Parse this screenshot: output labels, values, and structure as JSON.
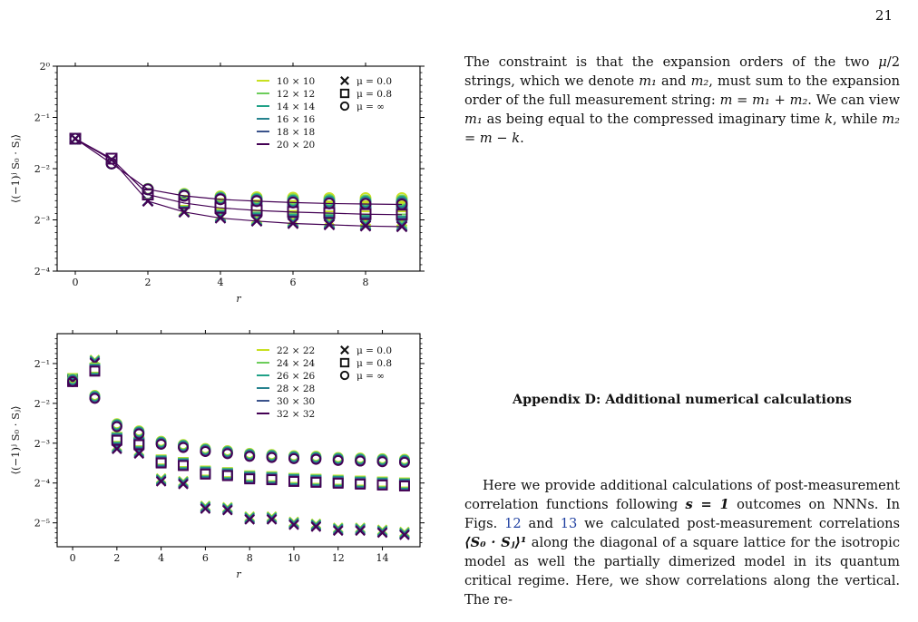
{
  "page_number": "21",
  "right_column": {
    "p1_a": "The constraint is that the expansion orders of the two ",
    "p1_b": "/2 strings, which we denote ",
    "p1_c": " and ",
    "p1_d": ", must sum to the expansion order of the full measurement string: ",
    "p1_e": ". We can view ",
    "p1_f": " as being equal to the compressed imaginary time ",
    "p1_g": ", while ",
    "p1_h": ".",
    "m1": "m₁",
    "m2": "m₂",
    "mu": "μ",
    "eq1": "m = m₁ + m₂",
    "eq2": "m₂ = m − k",
    "k": "k",
    "appendix_heading": "Appendix D: Additional numerical calculations",
    "p2_a": "Here we provide additional calculations of post-measurement correlation functions following ",
    "p2_s": "s = 1",
    "p2_b": " outcomes on NNNs. In Figs. ",
    "fig12": "12",
    "p2_and": " and ",
    "fig13": "13",
    "p2_c": " we calculated post-measurement correlations ",
    "p2_corr": "⟨S₀ · Sⱼ⟩¹",
    "p2_d": " along the diagonal of a square lattice for the isotropic model as well the partially dimerized model in its quantum critical regime. Here, we show correlations along the vertical. The re-"
  },
  "colors": {
    "viridis": [
      "#c8e020",
      "#6ccd5a",
      "#1fa187",
      "#26828e",
      "#3a528b",
      "#440154"
    ]
  },
  "chart_data": [
    {
      "type": "scatter",
      "ylabel": "⟨(−1)ʲ S₀ · Sⱼ⟩",
      "xlabel": "r",
      "xlim": [
        -0.5,
        9.5
      ],
      "ylim_log2": [
        -4,
        0
      ],
      "x_ticks": [
        "0",
        "2",
        "4",
        "6",
        "8"
      ],
      "y_ticks": [
        "2⁰",
        "2⁻¹",
        "2⁻²",
        "2⁻³",
        "2⁻⁴"
      ],
      "legend_sizes": [
        "10 × 10",
        "12 × 12",
        "14 × 14",
        "16 × 16",
        "18 × 18",
        "20 × 20"
      ],
      "legend_mu": [
        "μ = 0.0",
        "μ = 0.8",
        "μ = ∞"
      ],
      "lines_for_largest_size": true,
      "series": [
        {
          "size": "10 × 10",
          "mu": "0.0",
          "values": [
            0.375,
            0.282,
            0.162,
            0.142,
            0.133,
            0.128,
            0.125,
            0.124,
            0.124,
            0.123
          ]
        },
        {
          "size": "12 × 12",
          "mu": "0.0",
          "values": [
            0.375,
            0.282,
            0.162,
            0.141,
            0.132,
            0.126,
            0.123,
            0.121,
            0.12,
            0.12
          ]
        },
        {
          "size": "14 × 14",
          "mu": "0.0",
          "values": [
            0.375,
            0.282,
            0.162,
            0.14,
            0.131,
            0.125,
            0.122,
            0.12,
            0.118,
            0.117
          ]
        },
        {
          "size": "16 × 16",
          "mu": "0.0",
          "values": [
            0.375,
            0.282,
            0.162,
            0.14,
            0.13,
            0.124,
            0.121,
            0.119,
            0.117,
            0.116
          ]
        },
        {
          "size": "18 × 18",
          "mu": "0.0",
          "values": [
            0.375,
            0.282,
            0.162,
            0.139,
            0.129,
            0.123,
            0.12,
            0.118,
            0.116,
            0.115
          ]
        },
        {
          "size": "20 × 20",
          "mu": "0.0",
          "values": [
            0.375,
            0.282,
            0.161,
            0.139,
            0.128,
            0.123,
            0.119,
            0.117,
            0.115,
            0.114
          ]
        },
        {
          "size": "10 × 10",
          "mu": "0.8",
          "values": [
            0.375,
            0.286,
            0.178,
            0.162,
            0.155,
            0.152,
            0.151,
            0.15,
            0.15,
            0.15
          ]
        },
        {
          "size": "12 × 12",
          "mu": "0.8",
          "values": [
            0.375,
            0.286,
            0.177,
            0.16,
            0.152,
            0.148,
            0.146,
            0.145,
            0.144,
            0.144
          ]
        },
        {
          "size": "14 × 14",
          "mu": "0.8",
          "values": [
            0.375,
            0.286,
            0.177,
            0.159,
            0.15,
            0.146,
            0.143,
            0.142,
            0.141,
            0.14
          ]
        },
        {
          "size": "16 × 16",
          "mu": "0.8",
          "values": [
            0.375,
            0.286,
            0.177,
            0.158,
            0.149,
            0.144,
            0.141,
            0.139,
            0.138,
            0.137
          ]
        },
        {
          "size": "18 × 18",
          "mu": "0.8",
          "values": [
            0.375,
            0.286,
            0.177,
            0.157,
            0.148,
            0.143,
            0.14,
            0.138,
            0.137,
            0.136
          ]
        },
        {
          "size": "20 × 20",
          "mu": "0.8",
          "values": [
            0.375,
            0.286,
            0.176,
            0.157,
            0.147,
            0.142,
            0.139,
            0.137,
            0.135,
            0.134
          ]
        },
        {
          "size": "10 × 10",
          "mu": "∞",
          "values": [
            0.375,
            0.268,
            0.19,
            0.178,
            0.172,
            0.17,
            0.169,
            0.168,
            0.168,
            0.168
          ]
        },
        {
          "size": "12 × 12",
          "mu": "∞",
          "values": [
            0.375,
            0.268,
            0.19,
            0.177,
            0.17,
            0.167,
            0.165,
            0.164,
            0.163,
            0.163
          ]
        },
        {
          "size": "14 × 14",
          "mu": "∞",
          "values": [
            0.375,
            0.268,
            0.189,
            0.175,
            0.168,
            0.165,
            0.162,
            0.161,
            0.16,
            0.16
          ]
        },
        {
          "size": "16 × 16",
          "mu": "∞",
          "values": [
            0.375,
            0.268,
            0.189,
            0.174,
            0.167,
            0.163,
            0.16,
            0.159,
            0.158,
            0.157
          ]
        },
        {
          "size": "18 × 18",
          "mu": "∞",
          "values": [
            0.375,
            0.268,
            0.189,
            0.174,
            0.166,
            0.162,
            0.159,
            0.157,
            0.156,
            0.156
          ]
        },
        {
          "size": "20 × 20",
          "mu": "∞",
          "values": [
            0.375,
            0.268,
            0.189,
            0.173,
            0.165,
            0.161,
            0.158,
            0.156,
            0.155,
            0.154
          ]
        }
      ]
    },
    {
      "type": "scatter",
      "ylabel": "⟨(−1)ʲ S₀ · Sⱼ⟩",
      "xlabel": "r",
      "xlim": [
        -0.7,
        15.7
      ],
      "ylim_log2": [
        -5.6,
        -0.25
      ],
      "x_ticks": [
        "0",
        "2",
        "4",
        "6",
        "8",
        "10",
        "12",
        "14"
      ],
      "y_ticks": [
        "2⁻¹",
        "2⁻²",
        "2⁻³",
        "2⁻⁴",
        "2⁻⁵"
      ],
      "legend_sizes": [
        "22 × 22",
        "24 × 24",
        "26 × 26",
        "28 × 28",
        "30 × 30",
        "32 × 32"
      ],
      "legend_mu": [
        "μ = 0.0",
        "μ = 0.8",
        "μ = ∞"
      ],
      "series": [
        {
          "mu": "0.0",
          "x": [
            0,
            1,
            2,
            3,
            4,
            5,
            6,
            7,
            8,
            9,
            10,
            11,
            12,
            13,
            14,
            15
          ],
          "values": [
            0.375,
            0.52,
            0.116,
            0.107,
            0.066,
            0.063,
            0.041,
            0.04,
            0.034,
            0.034,
            0.031,
            0.03,
            0.028,
            0.028,
            0.027,
            0.026
          ]
        },
        {
          "mu": "0.8",
          "x": [
            0,
            1,
            2,
            3,
            4,
            5,
            6,
            7,
            8,
            9,
            10,
            11,
            12,
            13,
            14,
            15
          ],
          "values": [
            0.375,
            0.45,
            0.135,
            0.125,
            0.091,
            0.087,
            0.075,
            0.073,
            0.069,
            0.068,
            0.066,
            0.065,
            0.064,
            0.063,
            0.062,
            0.061
          ]
        },
        {
          "mu": "∞",
          "x": [
            0,
            1,
            2,
            3,
            4,
            5,
            6,
            7,
            8,
            9,
            10,
            11,
            12,
            13,
            14,
            15
          ],
          "values": [
            0.375,
            0.28,
            0.171,
            0.151,
            0.126,
            0.119,
            0.111,
            0.107,
            0.102,
            0.1,
            0.098,
            0.097,
            0.095,
            0.094,
            0.093,
            0.092
          ]
        }
      ]
    }
  ]
}
